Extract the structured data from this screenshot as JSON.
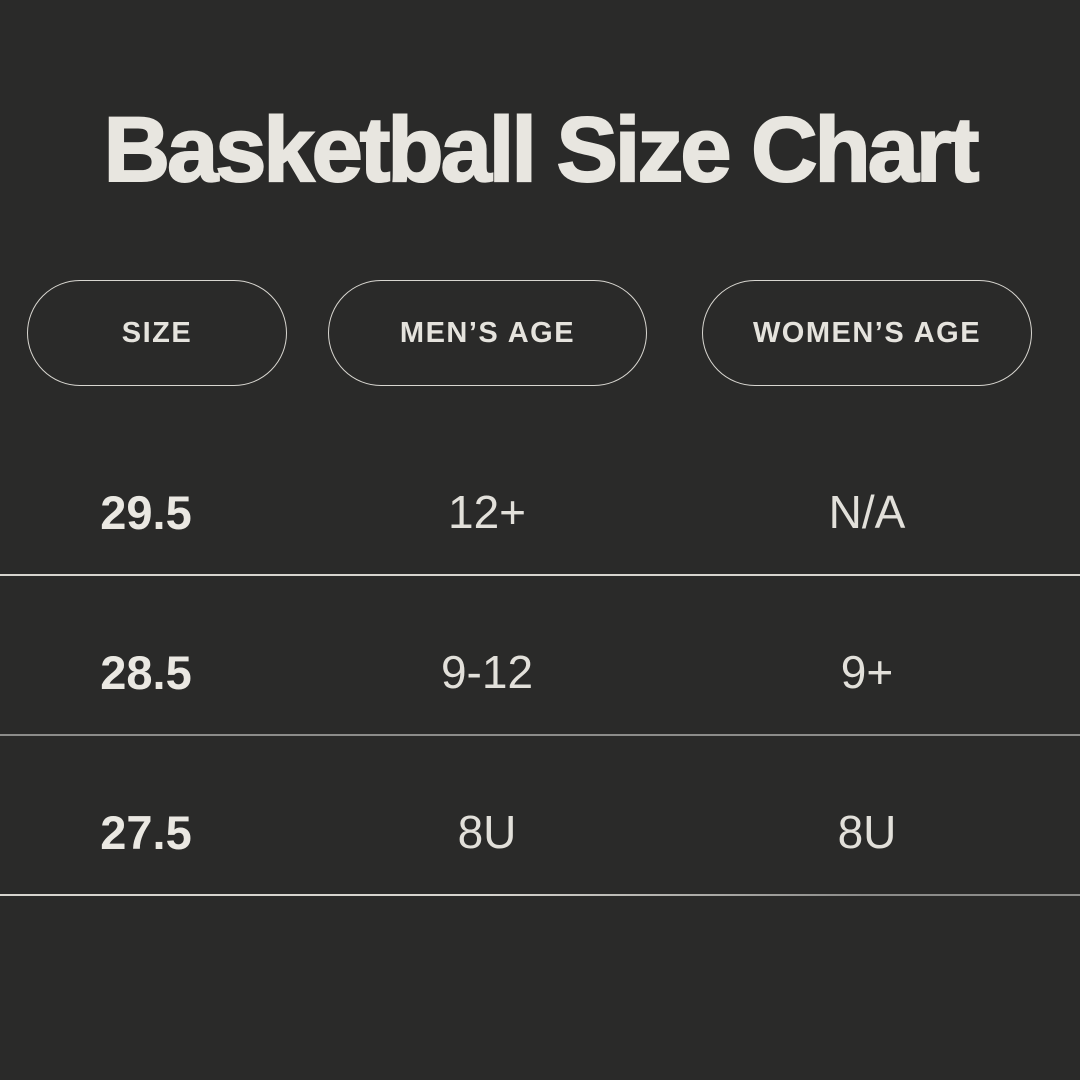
{
  "title": "Basketball Size Chart",
  "colors": {
    "background": "#2A2A29",
    "title_text": "#E8E6E0",
    "pill_border": "#D8D6D0",
    "cell_text_bold": "#EAE8E2",
    "cell_text_regular": "#E2E0DA",
    "divider_bright": "#D6D4CE",
    "divider_dim": "#8C8C8A"
  },
  "chart_data": {
    "type": "table",
    "title": "Basketball Size Chart",
    "columns": [
      "SIZE",
      "MEN’S AGE",
      "WOMEN’S AGE"
    ],
    "rows": [
      [
        "29.5",
        "12+",
        "N/A"
      ],
      [
        "28.5",
        "9-12",
        "9+"
      ],
      [
        "27.5",
        "8U",
        "8U"
      ]
    ],
    "layout": {
      "header_style": "outlined-pills",
      "grid": "horizontal-dividers-only",
      "background": "dark-charcoal"
    }
  }
}
